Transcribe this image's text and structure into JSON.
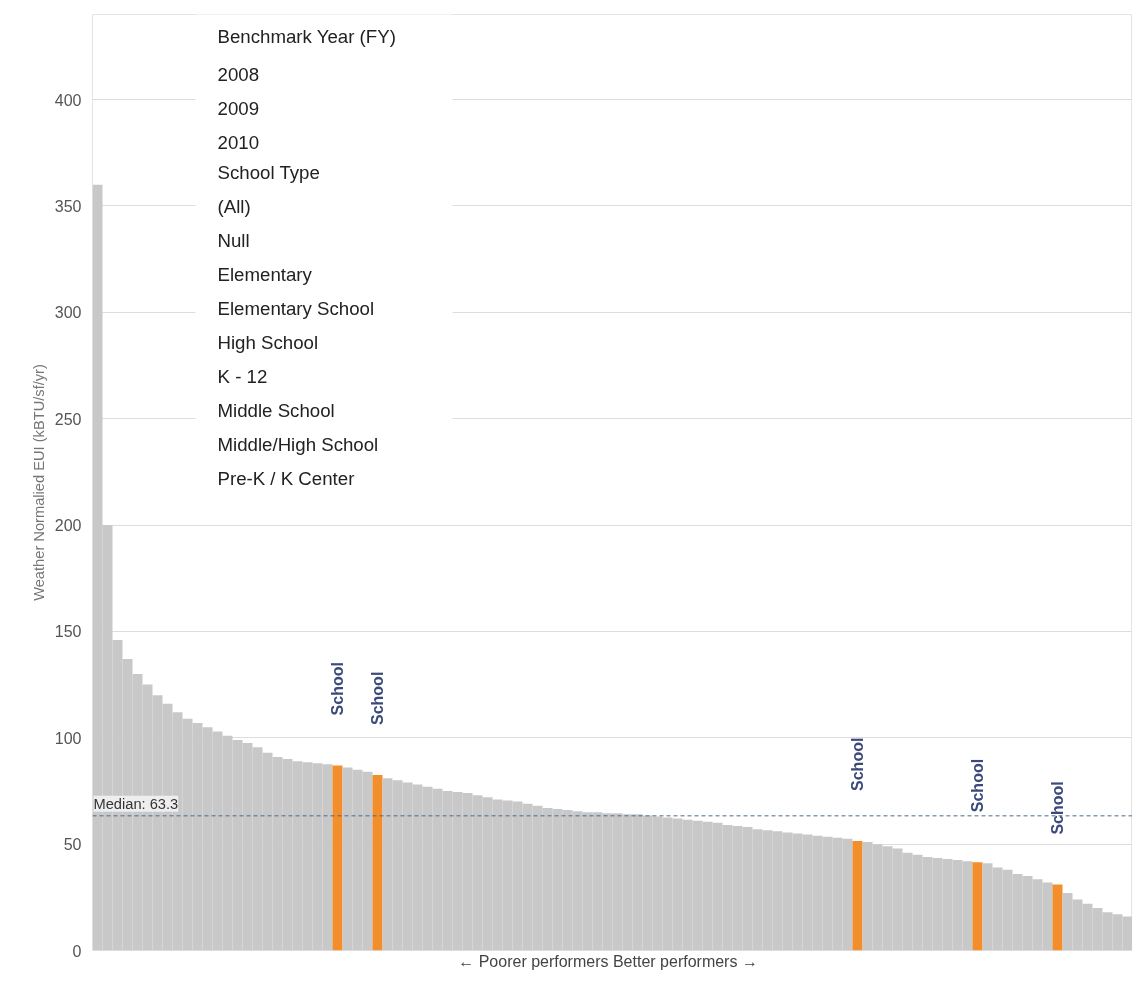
{
  "chart_data": {
    "type": "bar",
    "xlabel": "← Poorer performers   Better performers →",
    "ylabel": "Weather Normalied EUI (kBTU/sf/yr)",
    "categories": [
      null,
      null,
      null,
      null,
      null,
      null,
      null,
      null,
      null,
      null,
      null,
      null,
      null,
      null,
      null,
      null,
      null,
      null,
      null,
      null,
      null,
      null,
      null,
      null,
      null,
      null,
      null,
      null,
      null,
      null,
      null,
      null,
      null,
      null,
      null,
      null,
      null,
      null,
      null,
      null,
      null,
      null,
      null,
      null,
      null,
      null,
      null,
      null,
      null,
      null,
      null,
      null,
      null,
      null,
      null,
      null,
      null,
      null,
      null,
      null,
      null,
      null,
      null,
      null,
      null,
      null,
      null,
      null,
      null,
      null,
      null,
      null,
      null,
      null,
      null,
      null,
      null,
      null,
      null,
      null,
      null,
      null,
      null,
      null,
      null,
      null,
      null,
      null,
      null,
      null,
      null,
      null,
      null,
      null,
      null,
      null,
      null,
      null,
      null,
      null,
      null,
      null,
      null,
      null
    ],
    "values": [
      360,
      200,
      146,
      137,
      130,
      125,
      120,
      116,
      112,
      109,
      107,
      105,
      103,
      101,
      99,
      97.5,
      95.5,
      93,
      91,
      90,
      89,
      88.5,
      88,
      87.5,
      87,
      86,
      85,
      84,
      82.5,
      81,
      80,
      79,
      78,
      77,
      76,
      75,
      74.5,
      74,
      73,
      72,
      71,
      70.5,
      70,
      69,
      68,
      67,
      66.5,
      66,
      65.5,
      65,
      65,
      64.5,
      64.5,
      64,
      64,
      63.5,
      63,
      62.5,
      62,
      61.5,
      61,
      60.5,
      60,
      59,
      58.5,
      58,
      57,
      56.5,
      56,
      55.5,
      55,
      54.5,
      54,
      53.5,
      53,
      52.5,
      51.5,
      51,
      50,
      49,
      48,
      46,
      45,
      44,
      43.5,
      43,
      42.5,
      42,
      41.5,
      41,
      39,
      38,
      36,
      35,
      33.5,
      32,
      31,
      27,
      24,
      22,
      20,
      18,
      17,
      16
    ],
    "colors": [
      "#c8c8c8",
      "#c8c8c8",
      "#c8c8c8",
      "#c8c8c8",
      "#c8c8c8",
      "#c8c8c8",
      "#c8c8c8",
      "#c8c8c8",
      "#c8c8c8",
      "#c8c8c8",
      "#c8c8c8",
      "#c8c8c8",
      "#c8c8c8",
      "#c8c8c8",
      "#c8c8c8",
      "#c8c8c8",
      "#c8c8c8",
      "#c8c8c8",
      "#c8c8c8",
      "#c8c8c8",
      "#c8c8c8",
      "#c8c8c8",
      "#c8c8c8",
      "#c8c8c8",
      "#f28e2b",
      "#c8c8c8",
      "#c8c8c8",
      "#c8c8c8",
      "#f28e2b",
      "#c8c8c8",
      "#c8c8c8",
      "#c8c8c8",
      "#c8c8c8",
      "#c8c8c8",
      "#c8c8c8",
      "#c8c8c8",
      "#c8c8c8",
      "#c8c8c8",
      "#c8c8c8",
      "#c8c8c8",
      "#c8c8c8",
      "#c8c8c8",
      "#c8c8c8",
      "#c8c8c8",
      "#c8c8c8",
      "#c8c8c8",
      "#c8c8c8",
      "#c8c8c8",
      "#c8c8c8",
      "#c8c8c8",
      "#c8c8c8",
      "#c8c8c8",
      "#c8c8c8",
      "#c8c8c8",
      "#c8c8c8",
      "#c8c8c8",
      "#c8c8c8",
      "#c8c8c8",
      "#c8c8c8",
      "#c8c8c8",
      "#c8c8c8",
      "#c8c8c8",
      "#c8c8c8",
      "#c8c8c8",
      "#c8c8c8",
      "#c8c8c8",
      "#c8c8c8",
      "#c8c8c8",
      "#c8c8c8",
      "#c8c8c8",
      "#c8c8c8",
      "#c8c8c8",
      "#c8c8c8",
      "#c8c8c8",
      "#c8c8c8",
      "#c8c8c8",
      "#f28e2b",
      "#c8c8c8",
      "#c8c8c8",
      "#c8c8c8",
      "#c8c8c8",
      "#c8c8c8",
      "#c8c8c8",
      "#c8c8c8",
      "#c8c8c8",
      "#c8c8c8",
      "#c8c8c8",
      "#c8c8c8",
      "#f28e2b",
      "#c8c8c8",
      "#c8c8c8",
      "#c8c8c8",
      "#c8c8c8",
      "#c8c8c8",
      "#c8c8c8",
      "#c8c8c8",
      "#f28e2b",
      "#c8c8c8",
      "#c8c8c8",
      "#c8c8c8",
      "#c8c8c8",
      "#c8c8c8",
      "#c8c8c8",
      "#c8c8c8"
    ],
    "value_labels": [
      null,
      null,
      null,
      null,
      null,
      null,
      null,
      null,
      null,
      null,
      null,
      null,
      null,
      null,
      null,
      null,
      null,
      null,
      null,
      null,
      null,
      null,
      null,
      null,
      "School",
      null,
      null,
      null,
      "School",
      null,
      null,
      null,
      null,
      null,
      null,
      null,
      null,
      null,
      null,
      null,
      null,
      null,
      null,
      null,
      null,
      null,
      null,
      null,
      null,
      null,
      null,
      null,
      null,
      null,
      null,
      null,
      null,
      null,
      null,
      null,
      null,
      null,
      null,
      null,
      null,
      null,
      null,
      null,
      null,
      null,
      null,
      null,
      null,
      null,
      null,
      null,
      "School",
      null,
      null,
      null,
      null,
      null,
      null,
      null,
      null,
      null,
      null,
      null,
      "School",
      null,
      null,
      null,
      null,
      null,
      null,
      null,
      "School",
      null,
      null,
      null,
      null,
      null,
      null,
      null
    ],
    "ylim": [
      0,
      440
    ],
    "yticks": [
      0,
      50,
      100,
      150,
      200,
      250,
      300,
      350,
      400
    ],
    "grid": "y",
    "ref_lines": [
      {
        "axis": "y",
        "value": 63.3,
        "label": "Median: 63.3",
        "color": "#4a6a8a",
        "line_style": "dashed"
      }
    ],
    "annotations": [
      "Benchmark Year (FY)",
      "2008",
      "2009",
      "2010",
      "School Type",
      "(All)",
      "Null",
      "Elementary",
      "Elementary School",
      "High School",
      "K - 12",
      "Middle School",
      "Middle/High School",
      "Pre-K / K Center"
    ]
  }
}
